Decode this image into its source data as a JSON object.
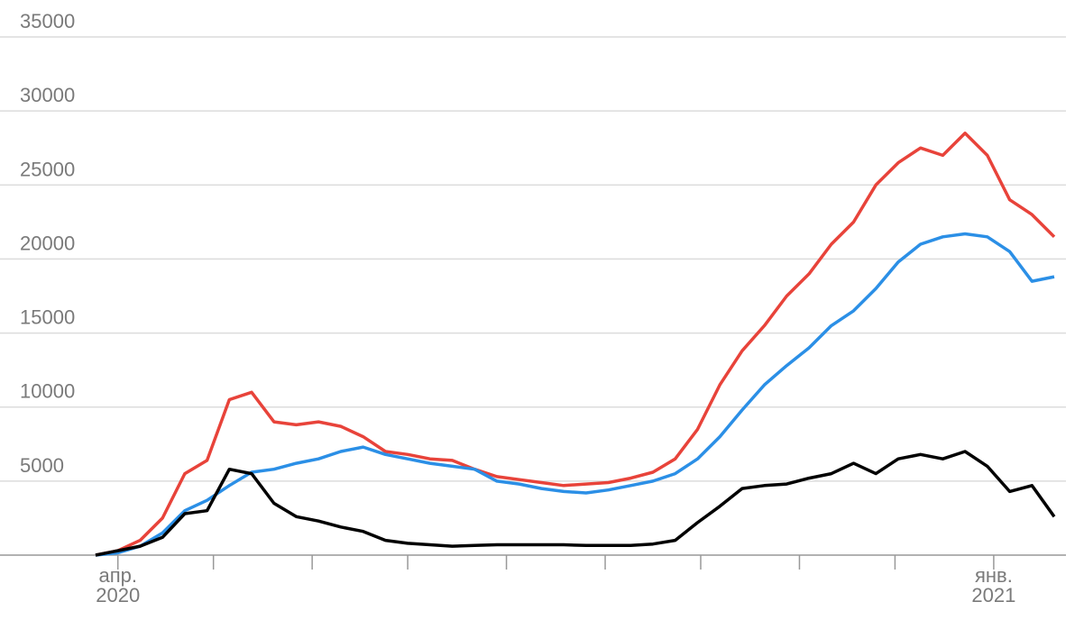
{
  "chart_data": {
    "type": "line",
    "x": [
      -7,
      0,
      7,
      14,
      21,
      28,
      35,
      42,
      49,
      56,
      63,
      70,
      77,
      84,
      91,
      98,
      105,
      112,
      119,
      126,
      133,
      140,
      147,
      154,
      161,
      168,
      175,
      182,
      189,
      196,
      203,
      210,
      217,
      224,
      231,
      238,
      245,
      252,
      259,
      266,
      273,
      280,
      287,
      294
    ],
    "series": [
      {
        "color": "#e8433a",
        "values": [
          0,
          300,
          1000,
          2500,
          5500,
          6400,
          10500,
          11000,
          9000,
          8800,
          9000,
          8700,
          8000,
          7000,
          6800,
          6500,
          6400,
          5800,
          5300,
          5100,
          4900,
          4700,
          4800,
          4900,
          5200,
          5600,
          6500,
          8500,
          11500,
          13800,
          15500,
          17500,
          19000,
          21000,
          22500,
          25000,
          26500,
          27500,
          27000,
          28500,
          27000,
          24000,
          23000,
          21500
        ]
      },
      {
        "color": "#2b8fe6",
        "values": [
          0,
          150,
          600,
          1500,
          3000,
          3700,
          4700,
          5600,
          5800,
          6200,
          6500,
          7000,
          7300,
          6800,
          6500,
          6200,
          6000,
          5800,
          5000,
          4800,
          4500,
          4300,
          4200,
          4400,
          4700,
          5000,
          5500,
          6500,
          8000,
          9800,
          11500,
          12800,
          14000,
          15500,
          16500,
          18000,
          19800,
          21000,
          21500,
          21700,
          21500,
          20500,
          18500,
          18800
        ]
      },
      {
        "color": "#000000",
        "values": [
          0,
          300,
          600,
          1200,
          2800,
          3000,
          5800,
          5500,
          3500,
          2600,
          2300,
          1900,
          1600,
          1000,
          800,
          700,
          600,
          650,
          700,
          700,
          700,
          700,
          650,
          650,
          650,
          750,
          1000,
          2200,
          3300,
          4500,
          4700,
          4800,
          5200,
          5500,
          6200,
          5500,
          6500,
          6800,
          6500,
          7000,
          6000,
          4300,
          4700,
          2600
        ]
      }
    ],
    "ylim": [
      0,
      35000
    ],
    "yticks": [
      5000,
      10000,
      15000,
      20000,
      25000,
      30000,
      35000
    ],
    "xlim": [
      -7,
      294
    ],
    "xticks": [
      {
        "value": 0,
        "label": "апр.\n2020"
      },
      {
        "value": 275,
        "label": "янв.\n2021"
      }
    ],
    "minor_xticks": [
      30,
      61,
      91,
      122,
      153,
      183,
      214,
      244
    ],
    "grid": true
  }
}
